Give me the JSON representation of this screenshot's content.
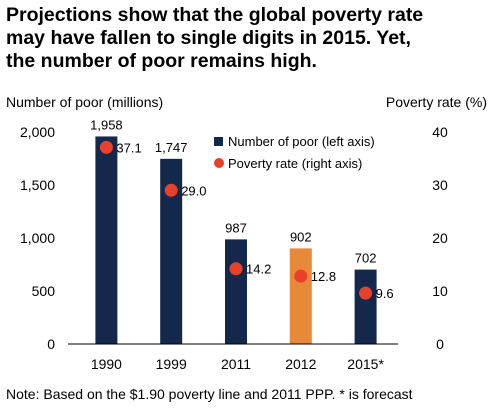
{
  "title_lines": [
    "Projections show that the global poverty rate",
    "may have fallen to single digits in 2015. Yet,",
    "the number of poor remains high."
  ],
  "note": "Note: Based on the $1.90 poverty line and 2011 PPP. * is forecast",
  "chart_data": {
    "type": "bar",
    "categories": [
      "1990",
      "1999",
      "2011",
      "2012",
      "2015*"
    ],
    "series": [
      {
        "name": "Number of poor (left axis)",
        "type": "bar",
        "axis": "left",
        "values": [
          1958,
          1747,
          987,
          902,
          702
        ],
        "labels": [
          "1,958",
          "1,747",
          "987",
          "902",
          "702"
        ],
        "colors": [
          "#14284b",
          "#14284b",
          "#14284b",
          "#e8893a",
          "#14284b"
        ]
      },
      {
        "name": "Poverty rate (right axis)",
        "type": "scatter",
        "axis": "right",
        "values": [
          37.1,
          29.0,
          14.2,
          12.8,
          9.6
        ],
        "labels": [
          "37.1",
          "29.0",
          "14.2",
          "12.8",
          "9.6"
        ],
        "color": "#e8402b"
      }
    ],
    "left_axis": {
      "title": "Number of poor (millions)",
      "ylim": [
        0,
        2000
      ],
      "ticks": [
        0,
        500,
        1000,
        1500,
        2000
      ],
      "tick_labels": [
        "0",
        "500",
        "1,000",
        "1,500",
        "2,000"
      ]
    },
    "right_axis": {
      "title": "Poverty rate (%)",
      "ylim": [
        0,
        40
      ],
      "ticks": [
        0,
        10,
        20,
        30,
        40
      ],
      "tick_labels": [
        "0",
        "10",
        "20",
        "30",
        "40"
      ]
    },
    "legend": {
      "placement": "top-right",
      "entries": [
        {
          "label": "Number of poor (left axis)",
          "marker": "square",
          "color": "#14284b"
        },
        {
          "label": "Poverty rate (right axis)",
          "marker": "circle",
          "color": "#e8402b"
        }
      ]
    },
    "grid": false
  }
}
